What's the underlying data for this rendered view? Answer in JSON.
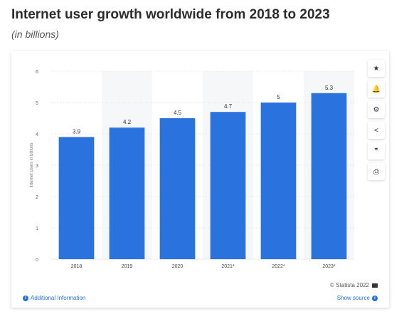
{
  "header": {
    "title": "Internet user growth worldwide from 2018 to 2023",
    "subtitle": "(in billions)"
  },
  "chart_data": {
    "type": "bar",
    "categories": [
      "2018",
      "2019",
      "2020",
      "2021*",
      "2022*",
      "2023*"
    ],
    "values": [
      3.9,
      4.2,
      4.5,
      4.7,
      5,
      5.3
    ],
    "value_labels": [
      "3.9",
      "4.2",
      "4.5",
      "4.7",
      "5",
      "5.3"
    ],
    "title": "",
    "xlabel": "",
    "ylabel": "Internet users in billions",
    "ylim": [
      0,
      6
    ],
    "yticks": [
      "0",
      "1",
      "2",
      "3",
      "4",
      "5",
      "6"
    ],
    "grid": true,
    "bar_color": "#2a72de",
    "shaded_columns": [
      "2019",
      "2021*",
      "2023*"
    ]
  },
  "toolbar": {
    "items": [
      {
        "name": "star-icon",
        "glyph": "★"
      },
      {
        "name": "bell-icon",
        "glyph": "🔔"
      },
      {
        "name": "gear-icon",
        "glyph": "⚙"
      },
      {
        "name": "share-icon",
        "glyph": "<"
      },
      {
        "name": "quote-icon",
        "glyph": "❞"
      },
      {
        "name": "print-icon",
        "glyph": "⎙"
      }
    ]
  },
  "footer": {
    "credit": "© Statista 2022",
    "info_label": "Additional Information",
    "source_label": "Show source",
    "info_glyph": "i",
    "link_color": "#2a6fd6"
  }
}
